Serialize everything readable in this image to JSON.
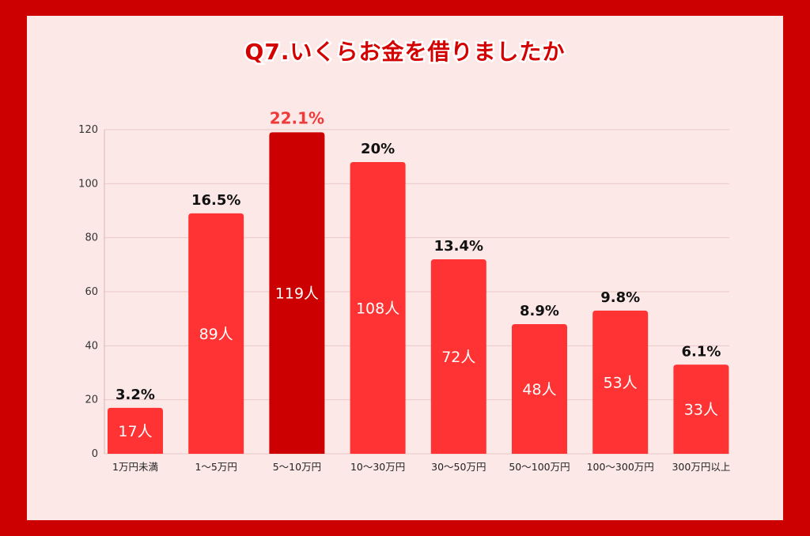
{
  "chart_data": {
    "type": "bar",
    "title": "Q7.いくらお金を借りましたか",
    "categories": [
      "1万円未満",
      "1～5万円",
      "5～10万円",
      "10～30万円",
      "30～50万円",
      "50～100万円",
      "100～300万円",
      "300万円以上"
    ],
    "values": [
      17,
      89,
      119,
      108,
      72,
      48,
      53,
      33
    ],
    "value_labels": [
      "17人",
      "89人",
      "119人",
      "108人",
      "72人",
      "48人",
      "53人",
      "33人"
    ],
    "percent_labels": [
      "3.2%",
      "16.5%",
      "22.1%",
      "20%",
      "13.4%",
      "8.9%",
      "9.8%",
      "6.1%"
    ],
    "highlight_index": 2,
    "ylim": [
      0,
      120
    ],
    "yticks": [
      0,
      20,
      40,
      60,
      80,
      100,
      120
    ],
    "grid": true,
    "legend": "none",
    "xlabel": "",
    "ylabel": ""
  },
  "colors": {
    "bar": "#ff3333",
    "bar_highlight": "#cc0000",
    "frame": "#cc0000",
    "panel": "#fde8e8",
    "title": "#d40000"
  }
}
